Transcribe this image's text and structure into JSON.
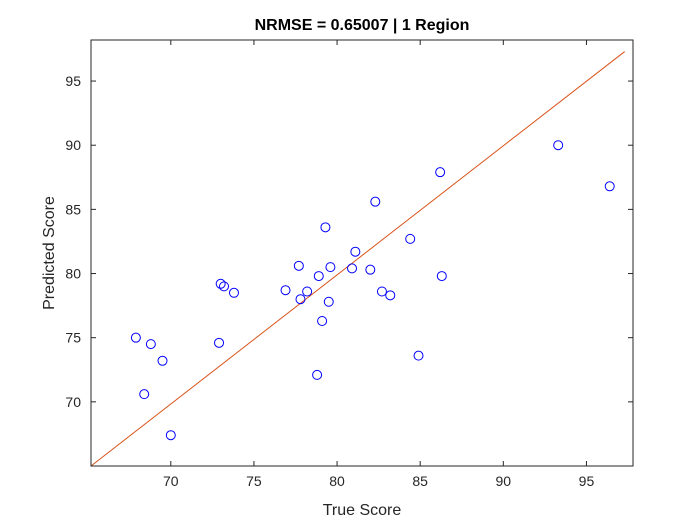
{
  "chart_data": {
    "type": "scatter",
    "title": "NRMSE = 0.65007 | 1 Region",
    "xlabel": "True Score",
    "ylabel": "Predicted Score",
    "xlim": [
      65.2,
      97.8
    ],
    "ylim": [
      65.0,
      98.2
    ],
    "xticks": [
      70,
      75,
      80,
      85,
      90,
      95
    ],
    "yticks": [
      70,
      75,
      80,
      85,
      90,
      95
    ],
    "grid": false,
    "reference_line": {
      "x": [
        65.2,
        97.3
      ],
      "y": [
        65.0,
        97.3
      ],
      "color": "#d95319"
    },
    "marker_color": "#0000ff",
    "points": [
      {
        "x": 67.9,
        "y": 75.0
      },
      {
        "x": 68.4,
        "y": 70.6
      },
      {
        "x": 68.8,
        "y": 74.5
      },
      {
        "x": 69.5,
        "y": 73.2
      },
      {
        "x": 70.0,
        "y": 67.4
      },
      {
        "x": 72.9,
        "y": 74.6
      },
      {
        "x": 73.0,
        "y": 79.2
      },
      {
        "x": 73.2,
        "y": 79.0
      },
      {
        "x": 73.8,
        "y": 78.5
      },
      {
        "x": 76.9,
        "y": 78.7
      },
      {
        "x": 77.7,
        "y": 80.6
      },
      {
        "x": 77.8,
        "y": 78.0
      },
      {
        "x": 78.2,
        "y": 78.6
      },
      {
        "x": 78.8,
        "y": 72.1
      },
      {
        "x": 78.9,
        "y": 79.8
      },
      {
        "x": 79.1,
        "y": 76.3
      },
      {
        "x": 79.3,
        "y": 83.6
      },
      {
        "x": 79.5,
        "y": 77.8
      },
      {
        "x": 79.6,
        "y": 80.5
      },
      {
        "x": 80.9,
        "y": 80.4
      },
      {
        "x": 81.1,
        "y": 81.7
      },
      {
        "x": 82.0,
        "y": 80.3
      },
      {
        "x": 82.3,
        "y": 85.6
      },
      {
        "x": 82.7,
        "y": 78.6
      },
      {
        "x": 83.2,
        "y": 78.3
      },
      {
        "x": 84.4,
        "y": 82.7
      },
      {
        "x": 84.9,
        "y": 73.6
      },
      {
        "x": 86.2,
        "y": 87.9
      },
      {
        "x": 86.3,
        "y": 79.8
      },
      {
        "x": 93.3,
        "y": 90.0
      },
      {
        "x": 96.4,
        "y": 86.8
      }
    ]
  }
}
